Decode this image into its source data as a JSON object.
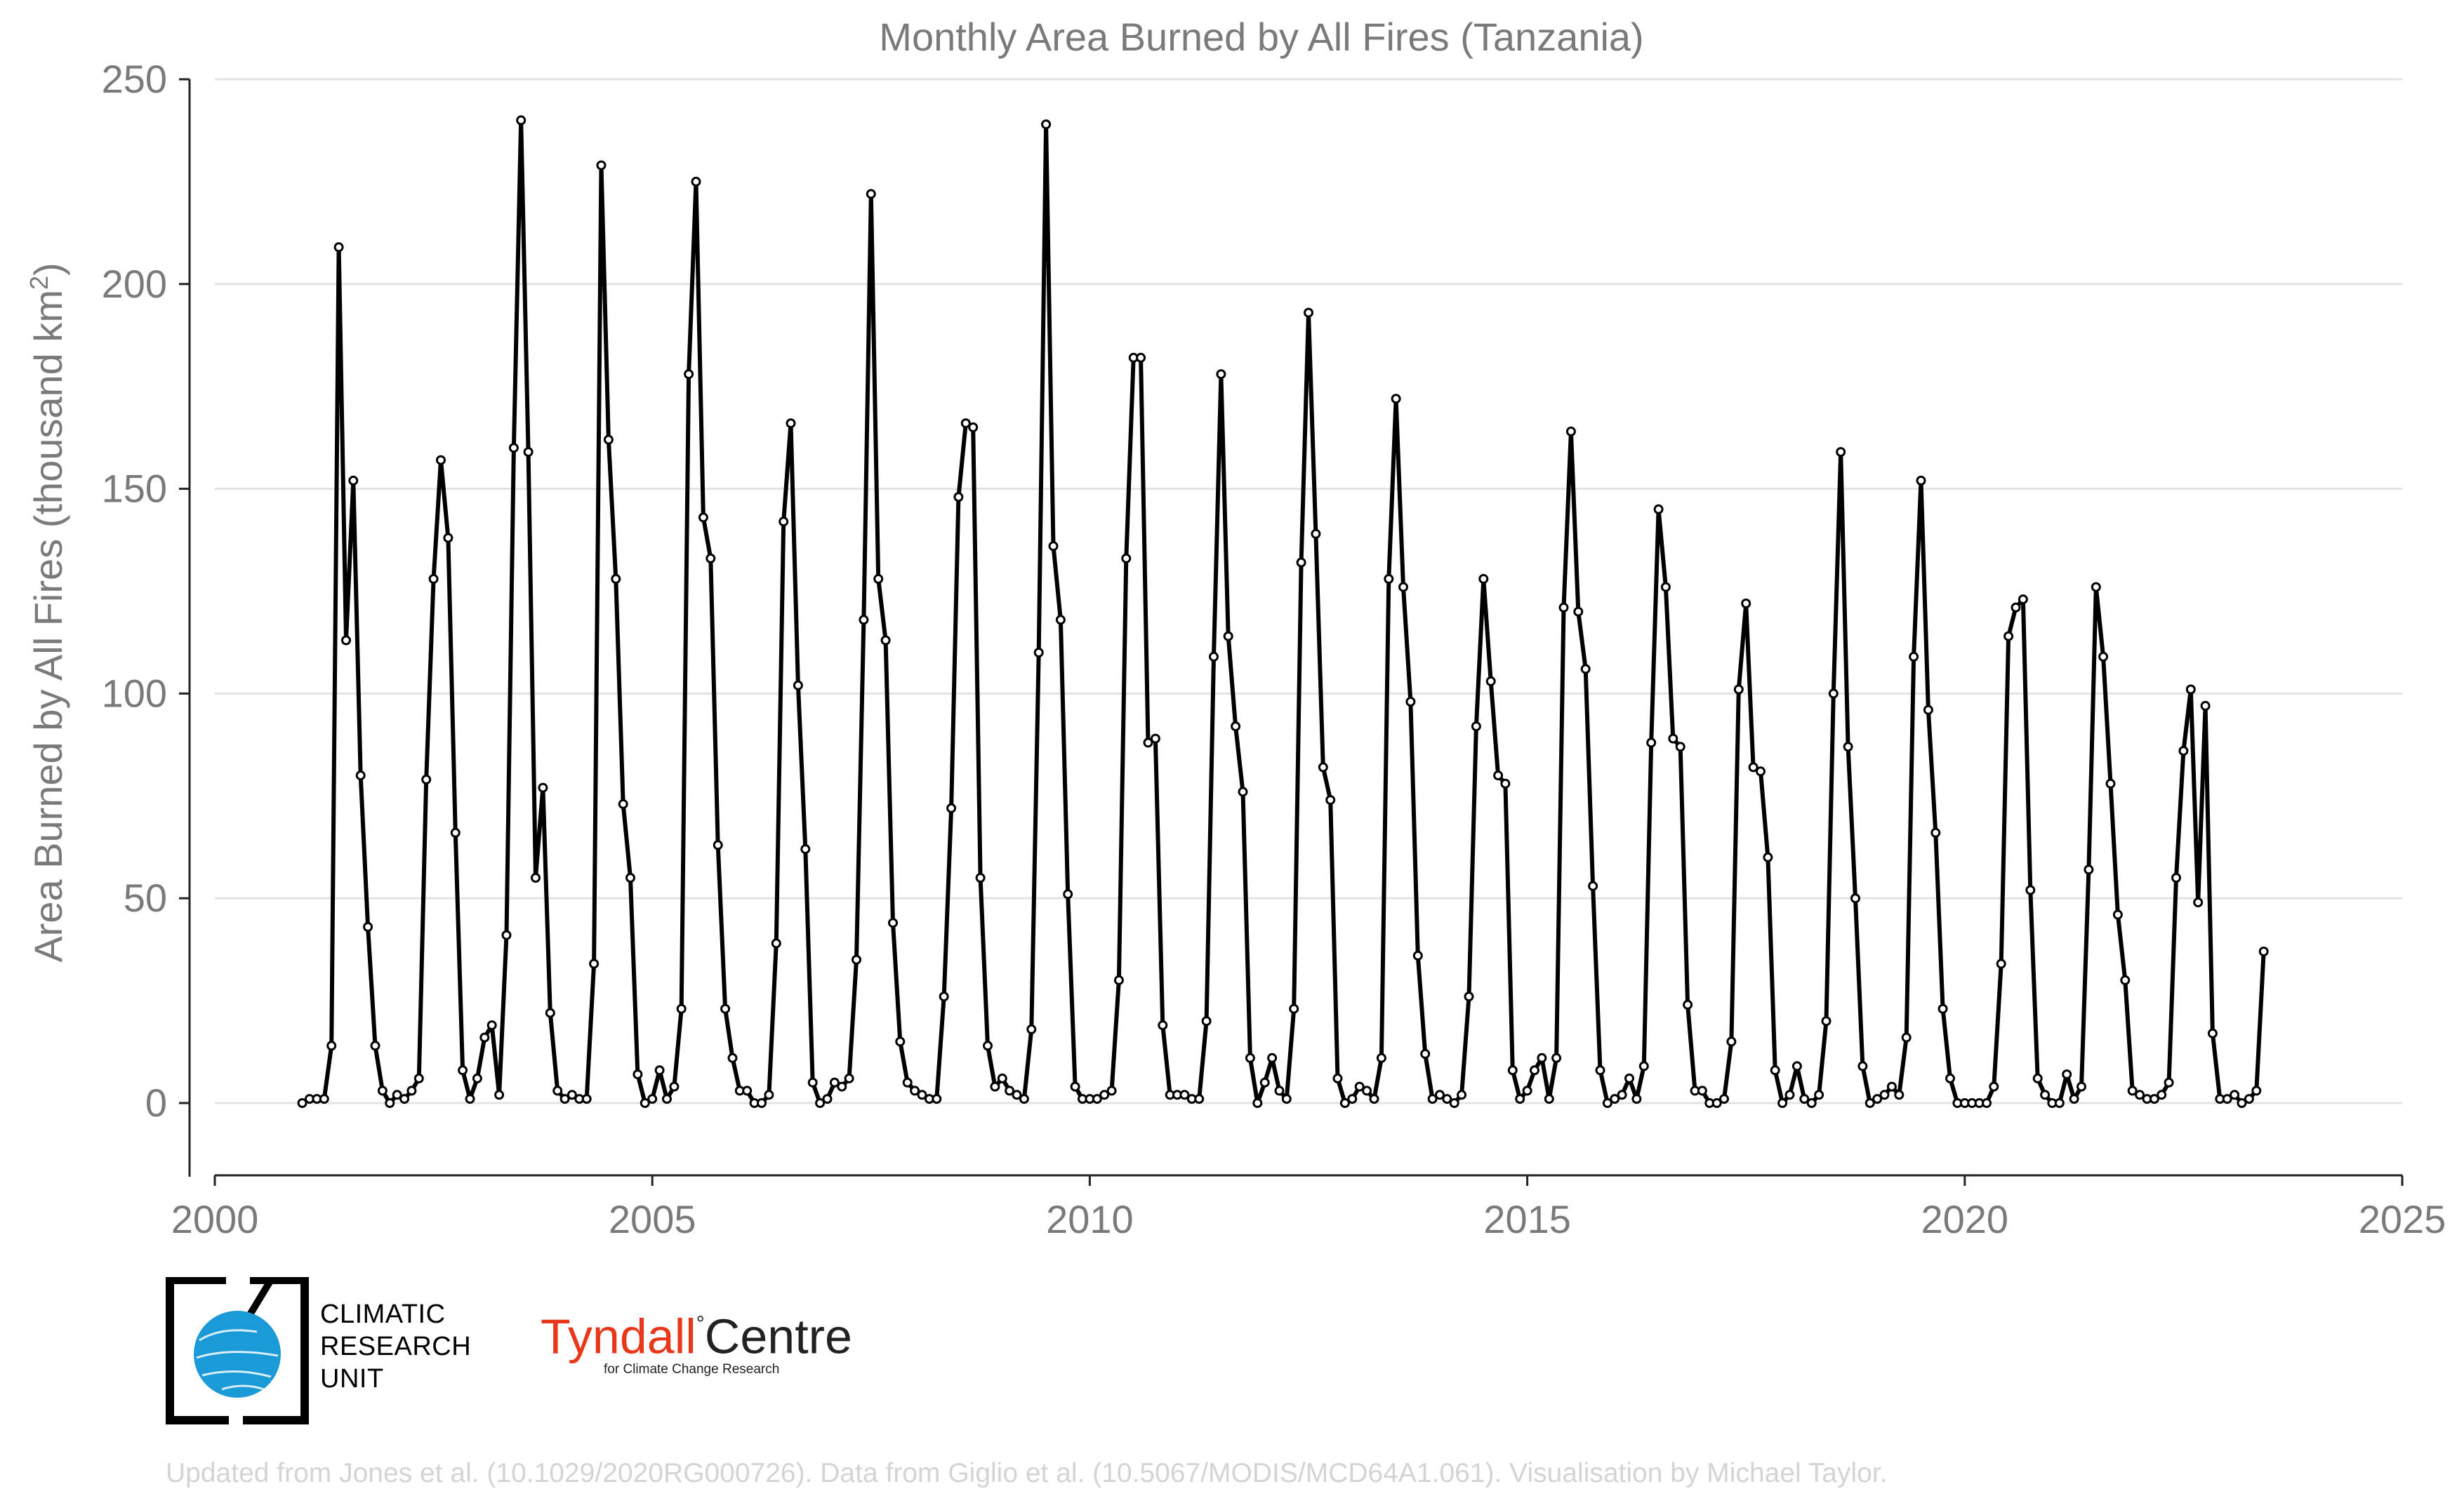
{
  "chart_data": {
    "type": "line",
    "title": "Monthly Area Burned by All Fires (Tanzania)",
    "ylabel": "Area Burned by All Fires (thousand km²)",
    "xlabel": "",
    "xlim": [
      2000,
      2025
    ],
    "ylim": [
      -18,
      250
    ],
    "x_ticks": [
      "2000",
      "2005",
      "2010",
      "2015",
      "2020",
      "2025"
    ],
    "y_ticks": [
      "0",
      "50",
      "100",
      "150",
      "200",
      "250"
    ],
    "grid": "horizontal",
    "series": [
      {
        "color": "#000000",
        "start_year": 2001,
        "start_month": 1,
        "values": [
          0,
          1,
          1,
          1,
          14,
          209,
          113,
          152,
          80,
          43,
          14,
          3,
          0,
          2,
          1,
          3,
          6,
          79,
          128,
          157,
          138,
          66,
          8,
          1,
          6,
          16,
          19,
          2,
          41,
          160,
          240,
          159,
          55,
          77,
          22,
          3,
          1,
          2,
          1,
          1,
          34,
          229,
          162,
          128,
          73,
          55,
          7,
          0,
          1,
          8,
          1,
          4,
          23,
          178,
          225,
          143,
          133,
          63,
          23,
          11,
          3,
          3,
          0,
          0,
          2,
          39,
          142,
          166,
          102,
          62,
          5,
          0,
          1,
          5,
          4,
          6,
          35,
          118,
          222,
          128,
          113,
          44,
          15,
          5,
          3,
          2,
          1,
          1,
          26,
          72,
          148,
          166,
          165,
          55,
          14,
          4,
          6,
          3,
          2,
          1,
          18,
          110,
          239,
          136,
          118,
          51,
          4,
          1,
          1,
          1,
          2,
          3,
          30,
          133,
          182,
          182,
          88,
          89,
          19,
          2,
          2,
          2,
          1,
          1,
          20,
          109,
          178,
          114,
          92,
          76,
          11,
          0,
          5,
          11,
          3,
          1,
          23,
          132,
          193,
          139,
          82,
          74,
          6,
          0,
          1,
          4,
          3,
          1,
          11,
          128,
          172,
          126,
          98,
          36,
          12,
          1,
          2,
          1,
          0,
          2,
          26,
          92,
          128,
          103,
          80,
          78,
          8,
          1,
          3,
          8,
          11,
          1,
          11,
          121,
          164,
          120,
          106,
          53,
          8,
          0,
          1,
          2,
          6,
          1,
          9,
          88,
          145,
          126,
          89,
          87,
          24,
          3,
          3,
          0,
          0,
          1,
          15,
          101,
          122,
          82,
          81,
          60,
          8,
          0,
          2,
          9,
          1,
          0,
          2,
          20,
          100,
          159,
          87,
          50,
          9,
          0,
          1,
          2,
          4,
          2,
          16,
          109,
          152,
          96,
          66,
          23,
          6,
          0,
          0,
          0,
          0,
          0,
          4,
          34,
          114,
          121,
          123,
          52,
          6,
          2,
          0,
          0,
          7,
          1,
          4,
          57,
          126,
          109,
          78,
          46,
          30,
          3,
          2,
          1,
          1,
          2,
          5,
          55,
          86,
          101,
          49,
          97,
          17,
          1,
          1,
          2,
          0,
          1,
          3,
          37
        ]
      }
    ]
  },
  "logos": {
    "cru": {
      "lines": [
        "CLIMATIC",
        "RESEARCH",
        "UNIT"
      ]
    },
    "tyndall": {
      "name_part1": "Tyndall",
      "degree": "°",
      "name_part2": "Centre",
      "subtitle": "for Climate Change Research"
    }
  },
  "credit": "Updated from Jones et al. (10.1029/2020RG000726). Data from Giglio et al. (10.5067/MODIS/MCD64A1.061). Visualisation by Michael Taylor."
}
